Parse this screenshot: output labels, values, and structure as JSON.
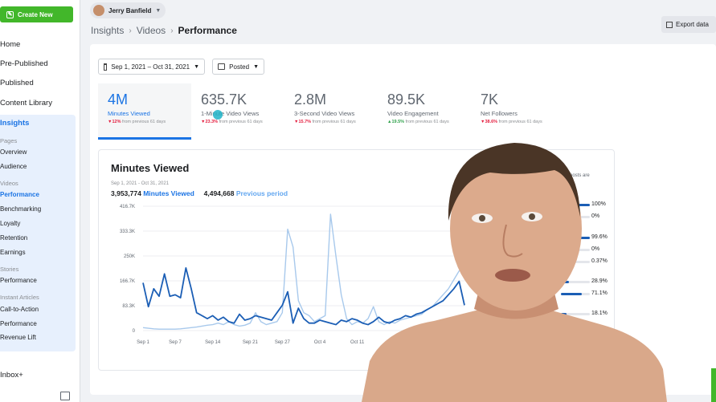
{
  "sidebar": {
    "create_label": "Create New",
    "items": [
      {
        "label": "Home"
      },
      {
        "label": "Pre-Published"
      },
      {
        "label": "Published"
      },
      {
        "label": "Content Library"
      },
      {
        "label": "Insights"
      }
    ],
    "pages_head": "Pages",
    "pages_items": [
      "Overview",
      "Audience"
    ],
    "videos_head": "Videos",
    "videos_items": [
      "Performance",
      "Benchmarking",
      "Loyalty",
      "Retention",
      "Earnings"
    ],
    "stories_head": "Stories",
    "stories_items": [
      "Performance"
    ],
    "instant_head": "Instant Articles",
    "instant_items": [
      "Call-to-Action",
      "Performance",
      "Revenue Lift"
    ],
    "inbox_label": "Inbox+"
  },
  "header": {
    "user_name": "Jerry Banfield",
    "breadcrumb": [
      "Insights",
      "Videos",
      "Performance"
    ],
    "export_label": "Export data"
  },
  "filters": {
    "date_range": "Sep 1, 2021 – Oct 31, 2021",
    "post_type": "Posted"
  },
  "metrics": [
    {
      "value": "4M",
      "label": "Minutes Viewed",
      "change": "12%",
      "direction": "down",
      "suffix": "from previous 61 days"
    },
    {
      "value": "635.7K",
      "label": "1-Minute Video Views",
      "change": "23.3%",
      "direction": "down",
      "suffix": "from previous 61 days"
    },
    {
      "value": "2.8M",
      "label": "3-Second Video Views",
      "change": "15.7%",
      "direction": "down",
      "suffix": "from previous 61 days"
    },
    {
      "value": "89.5K",
      "label": "Video Engagement",
      "change": "19.5%",
      "direction": "up",
      "suffix": "from previous 61 days"
    },
    {
      "value": "7K",
      "label": "Net Followers",
      "change": "38.6%",
      "direction": "down",
      "suffix": "from previous 61 days"
    }
  ],
  "chart": {
    "title": "Minutes Viewed",
    "range": "Sep 1, 2021 - Oct 31, 2021",
    "current_total": "3,953,774",
    "current_label": "Minutes Viewed",
    "previous_total": "4,494,668",
    "previous_label": "Previous period"
  },
  "chart_data": {
    "type": "line",
    "title": "Minutes Viewed",
    "x_tick_labels": [
      "Sep 1",
      "Sep 7",
      "Sep 14",
      "Sep 21",
      "Sep 27",
      "Oct 4",
      "Oct 11"
    ],
    "y_tick_labels": [
      "416.7K",
      "333.3K",
      "250K",
      "166.7K",
      "83.3K",
      "0"
    ],
    "ylim": [
      0,
      416700
    ],
    "grid": true,
    "series": [
      {
        "name": "Minutes Viewed",
        "color": "#1b5eb5",
        "values": [
          160000,
          80000,
          140000,
          115000,
          190000,
          115000,
          120000,
          110000,
          210000,
          140000,
          60000,
          50000,
          40000,
          50000,
          35000,
          45000,
          30000,
          25000,
          55000,
          35000,
          40000,
          50000,
          45000,
          40000,
          35000,
          60000,
          85000,
          130000,
          25000,
          75000,
          40000,
          25000,
          25000,
          35000,
          30000,
          25000,
          20000,
          35000,
          30000,
          40000,
          35000,
          25000,
          20000,
          30000,
          45000,
          30000,
          25000,
          35000,
          40000,
          50000,
          45000,
          55000,
          60000,
          70000,
          80000,
          90000,
          100000,
          120000,
          140000,
          165000,
          85000
        ]
      },
      {
        "name": "Previous period",
        "color": "#a8c9ec",
        "values": [
          10000,
          8000,
          6000,
          5000,
          5000,
          5000,
          5000,
          6000,
          8000,
          10000,
          12000,
          15000,
          18000,
          20000,
          25000,
          20000,
          30000,
          20000,
          15000,
          18000,
          25000,
          60000,
          30000,
          20000,
          25000,
          30000,
          60000,
          340000,
          280000,
          100000,
          60000,
          50000,
          30000,
          40000,
          50000,
          390000,
          250000,
          120000,
          40000,
          20000,
          30000,
          25000,
          40000,
          80000,
          30000,
          20000,
          30000,
          25000,
          35000,
          40000,
          45000,
          50000,
          55000,
          70000,
          80000,
          100000,
          120000,
          140000,
          170000,
          200000,
          220000
        ]
      }
    ]
  },
  "breakdown": {
    "note": "pes of posts are",
    "rows": [
      {
        "pct": "100%",
        "fill": 1.0
      },
      {
        "pct": "0%",
        "fill": 0.0
      },
      {
        "pct": "99.6%",
        "fill": 0.996
      },
      {
        "pct": "0%",
        "fill": 0.0
      },
      {
        "pct": "0.37%",
        "fill": 0.0037
      },
      {
        "pct": "28.9%",
        "fill": 0.289
      },
      {
        "pct": "71.1%",
        "fill": 0.711
      },
      {
        "pct": "18.1%",
        "fill": 0.181
      }
    ]
  },
  "colors": {
    "accent": "#1b74e4",
    "create_green": "#42b72a",
    "down": "#e41e3f",
    "up": "#31a24c"
  }
}
